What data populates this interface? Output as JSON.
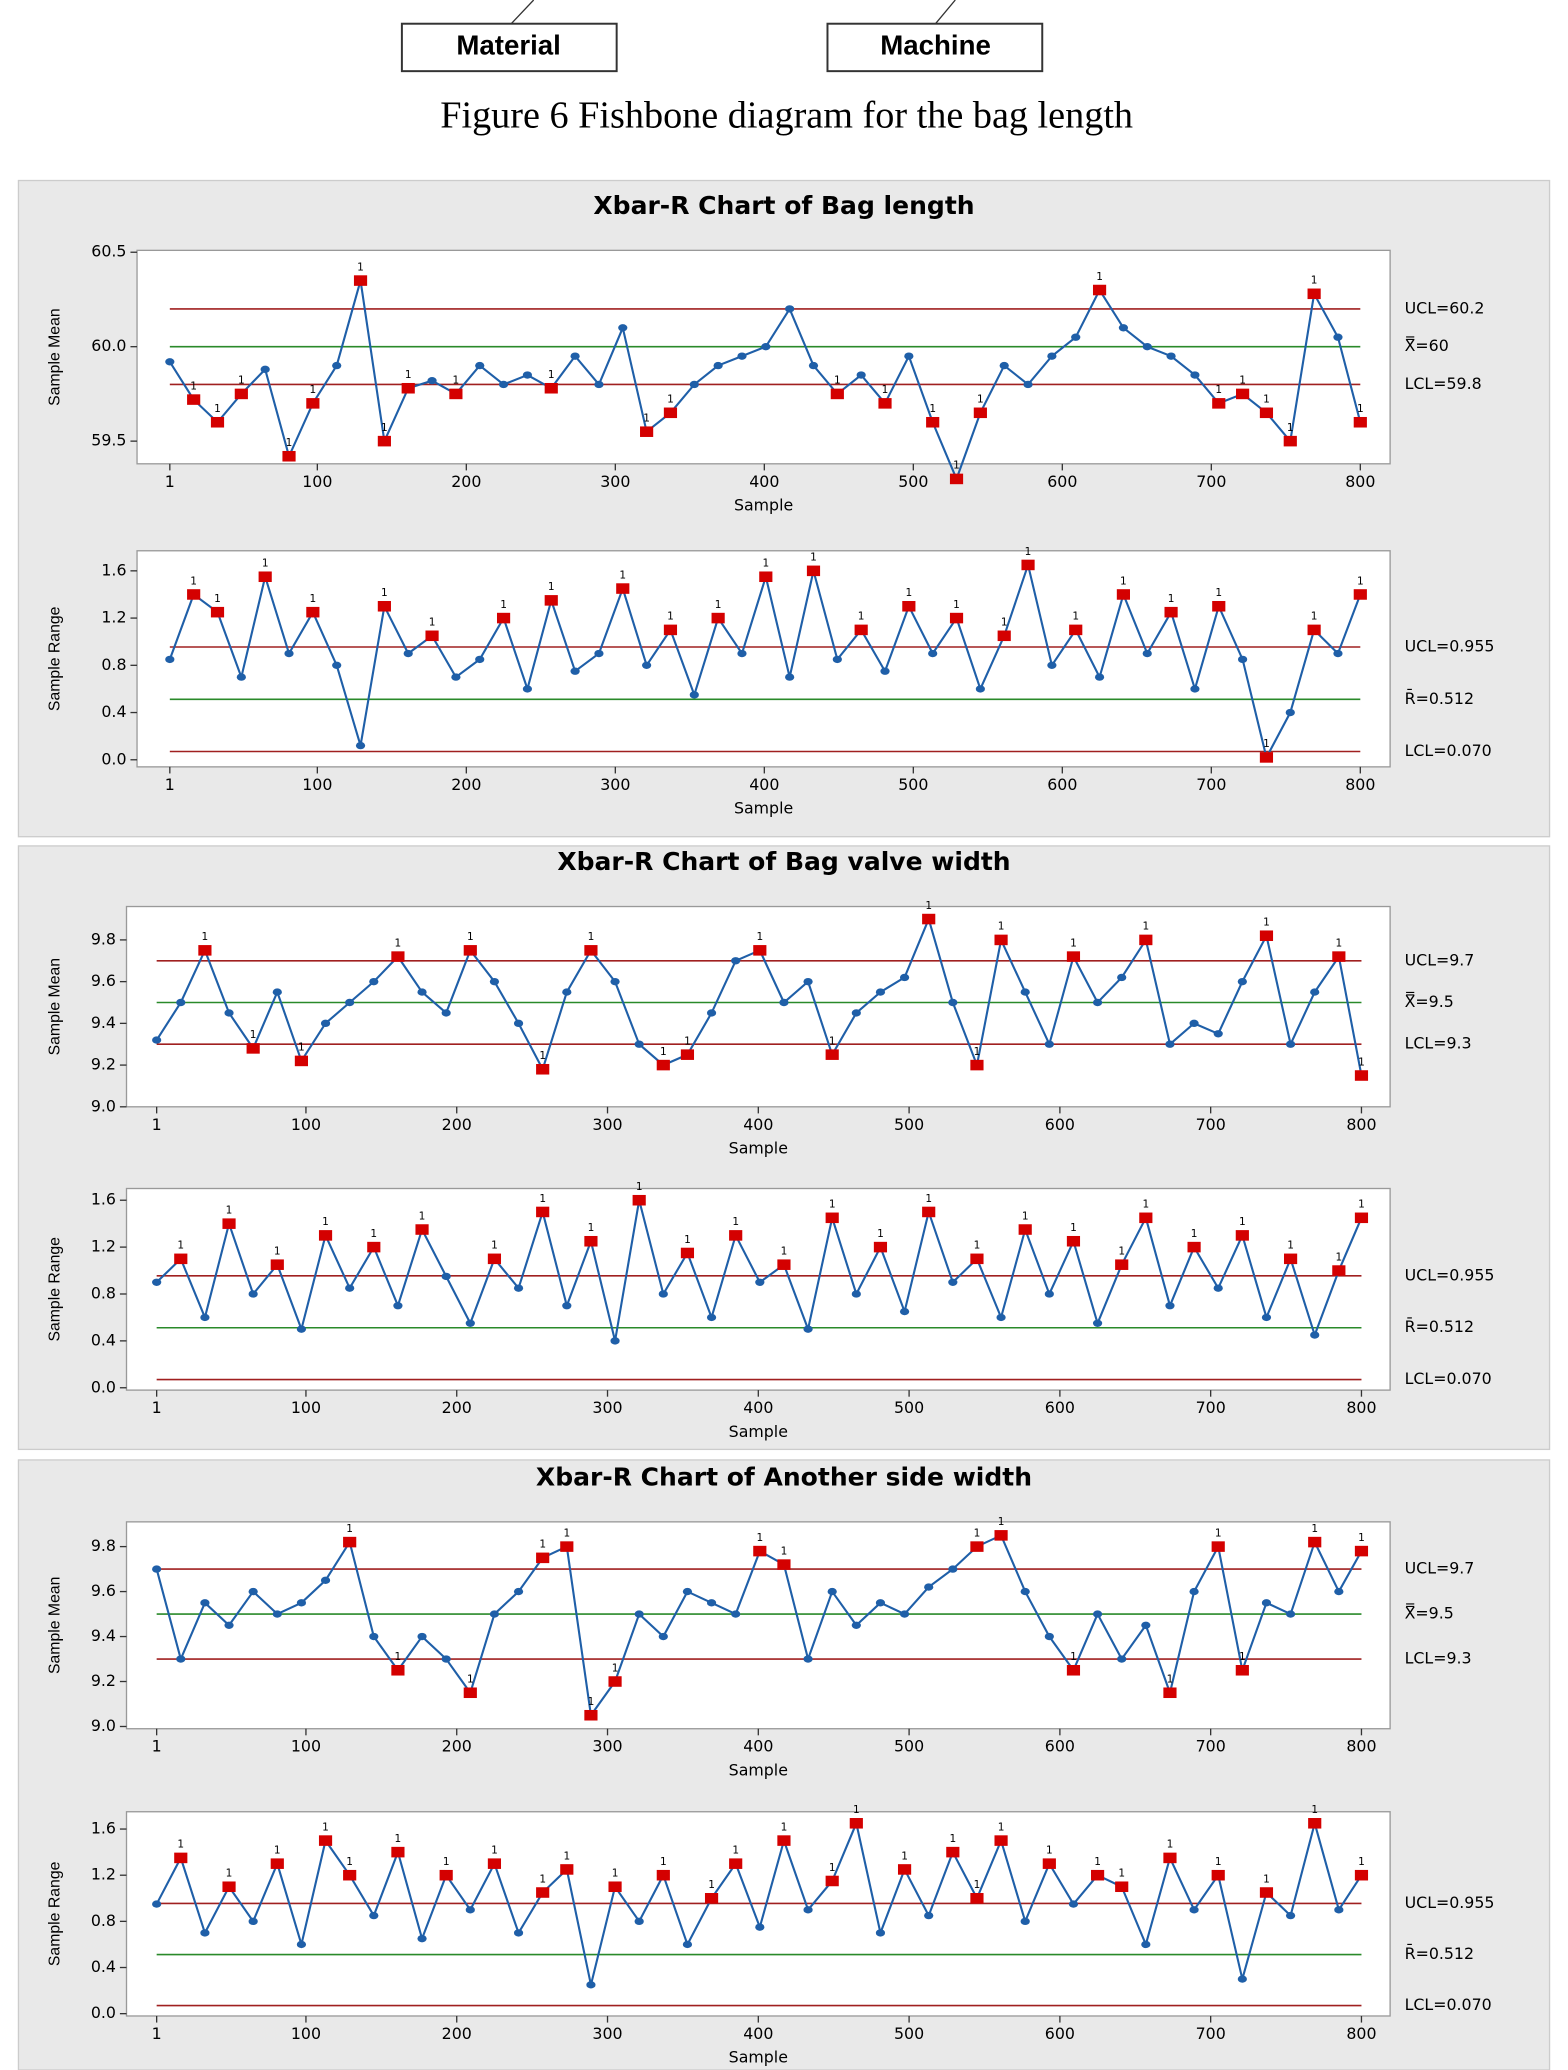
{
  "figure": {
    "boxes": [
      "Material",
      "Machine"
    ],
    "caption": "Figure 6 Fishbone diagram for the bag length"
  },
  "chart_data": [
    {
      "type": "line",
      "title": "Xbar-R Chart of Bag length",
      "ylabel": "Sample Mean",
      "xlabel": "Sample",
      "color": "#1f5fa8",
      "flag_color": "#d40000",
      "flag_label": "1",
      "x": [
        1,
        17,
        33,
        49,
        65,
        81,
        97,
        113,
        129,
        145,
        161,
        177,
        193,
        209,
        225,
        241,
        257,
        273,
        289,
        305,
        321,
        337,
        353,
        369,
        385,
        401,
        417,
        433,
        449,
        465,
        481,
        497,
        513,
        529,
        545,
        561,
        577,
        593,
        609,
        625,
        641,
        657,
        673,
        689,
        705,
        721,
        737,
        753,
        769,
        785,
        800
      ],
      "values": [
        59.92,
        59.72,
        59.6,
        59.75,
        59.88,
        59.42,
        59.7,
        59.9,
        60.35,
        59.5,
        59.78,
        59.82,
        59.75,
        59.9,
        59.8,
        59.85,
        59.78,
        59.95,
        59.8,
        60.1,
        59.55,
        59.65,
        59.8,
        59.9,
        59.95,
        60.0,
        60.2,
        59.9,
        59.75,
        59.85,
        59.7,
        59.95,
        59.6,
        59.3,
        59.65,
        59.9,
        59.8,
        59.95,
        60.05,
        60.3,
        60.1,
        60.0,
        59.95,
        59.85,
        59.7,
        59.75,
        59.65,
        59.5,
        60.28,
        60.05,
        59.6
      ],
      "control_lines": [
        {
          "label": "UCL=60.2",
          "value": 60.2,
          "color": "#a02020"
        },
        {
          "label": "X̿=60",
          "value": 60,
          "color": "#2a8a2a"
        },
        {
          "label": "LCL=59.8",
          "value": 59.8,
          "color": "#a02020"
        }
      ],
      "xlim": [
        -21,
        820
      ],
      "xticks": [
        1,
        100,
        200,
        300,
        400,
        500,
        600,
        700,
        800
      ],
      "ylim": [
        59.38,
        60.51
      ],
      "yticks": [
        59.5,
        {
          "value": 60,
          "label": "60.0"
        },
        60.5
      ]
    },
    {
      "type": "line",
      "ylabel": "Sample Range",
      "xlabel": "Sample",
      "color": "#1f5fa8",
      "flag_color": "#d40000",
      "flag_label": "1",
      "x": [
        1,
        17,
        33,
        49,
        65,
        81,
        97,
        113,
        129,
        145,
        161,
        177,
        193,
        209,
        225,
        241,
        257,
        273,
        289,
        305,
        321,
        337,
        353,
        369,
        385,
        401,
        417,
        433,
        449,
        465,
        481,
        497,
        513,
        529,
        545,
        561,
        577,
        593,
        609,
        625,
        641,
        657,
        673,
        689,
        705,
        721,
        737,
        753,
        769,
        785,
        800
      ],
      "values": [
        0.85,
        1.4,
        1.25,
        0.7,
        1.55,
        0.9,
        1.25,
        0.8,
        0.12,
        1.3,
        0.9,
        1.05,
        0.7,
        0.85,
        1.2,
        0.6,
        1.35,
        0.75,
        0.9,
        1.45,
        0.8,
        1.1,
        0.55,
        1.2,
        0.9,
        1.55,
        0.7,
        1.6,
        0.85,
        1.1,
        0.75,
        1.3,
        0.9,
        1.2,
        0.6,
        1.05,
        1.65,
        0.8,
        1.1,
        0.7,
        1.4,
        0.9,
        1.25,
        0.6,
        1.3,
        0.85,
        0.02,
        0.4,
        1.1,
        0.9,
        1.4
      ],
      "control_lines": [
        {
          "label": "UCL=0.955",
          "value": 0.955,
          "color": "#a02020"
        },
        {
          "label": "R̄=0.512",
          "value": 0.512,
          "color": "#2a8a2a"
        },
        {
          "label": "LCL=0.070",
          "value": 0.07,
          "color": "#a02020"
        }
      ],
      "xlim": [
        -21,
        820
      ],
      "xticks": [
        1,
        100,
        200,
        300,
        400,
        500,
        600,
        700,
        800
      ],
      "ylim": [
        -0.06,
        1.77
      ],
      "yticks": [
        {
          "value": 0,
          "label": "0.0"
        },
        0.4,
        0.8,
        1.2,
        1.6
      ]
    },
    {
      "type": "line",
      "title": "Xbar-R Chart of Bag valve width",
      "ylabel": "Sample Mean",
      "xlabel": "Sample",
      "color": "#1f5fa8",
      "flag_color": "#d40000",
      "flag_label": "1",
      "x": [
        1,
        17,
        33,
        49,
        65,
        81,
        97,
        113,
        129,
        145,
        161,
        177,
        193,
        209,
        225,
        241,
        257,
        273,
        289,
        305,
        321,
        337,
        353,
        369,
        385,
        401,
        417,
        433,
        449,
        465,
        481,
        497,
        513,
        529,
        545,
        561,
        577,
        593,
        609,
        625,
        641,
        657,
        673,
        689,
        705,
        721,
        737,
        753,
        769,
        785,
        800
      ],
      "values": [
        9.32,
        9.5,
        9.75,
        9.45,
        9.28,
        9.55,
        9.22,
        9.4,
        9.5,
        9.6,
        9.72,
        9.55,
        9.45,
        9.75,
        9.6,
        9.4,
        9.18,
        9.55,
        9.75,
        9.6,
        9.3,
        9.2,
        9.25,
        9.45,
        9.7,
        9.75,
        9.5,
        9.6,
        9.25,
        9.45,
        9.55,
        9.62,
        9.9,
        9.5,
        9.2,
        9.8,
        9.55,
        9.3,
        9.72,
        9.5,
        9.62,
        9.8,
        9.3,
        9.4,
        9.35,
        9.6,
        9.82,
        9.3,
        9.55,
        9.72,
        9.15
      ],
      "control_lines": [
        {
          "label": "UCL=9.7",
          "value": 9.7,
          "color": "#a02020"
        },
        {
          "label": "X̿=9.5",
          "value": 9.5,
          "color": "#2a8a2a"
        },
        {
          "label": "LCL=9.3",
          "value": 9.3,
          "color": "#a02020"
        }
      ],
      "xlim": [
        -19,
        819
      ],
      "xticks": [
        1,
        100,
        200,
        300,
        400,
        500,
        600,
        700,
        800
      ],
      "ylim": [
        9.0,
        9.96
      ],
      "yticks": [
        {
          "value": 9,
          "label": "9.0"
        },
        9.2,
        9.4,
        9.6,
        9.8
      ]
    },
    {
      "type": "line",
      "ylabel": "Sample Range",
      "xlabel": "Sample",
      "color": "#1f5fa8",
      "flag_color": "#d40000",
      "flag_label": "1",
      "x": [
        1,
        17,
        33,
        49,
        65,
        81,
        97,
        113,
        129,
        145,
        161,
        177,
        193,
        209,
        225,
        241,
        257,
        273,
        289,
        305,
        321,
        337,
        353,
        369,
        385,
        401,
        417,
        433,
        449,
        465,
        481,
        497,
        513,
        529,
        545,
        561,
        577,
        593,
        609,
        625,
        641,
        657,
        673,
        689,
        705,
        721,
        737,
        753,
        769,
        785,
        800
      ],
      "values": [
        0.9,
        1.1,
        0.6,
        1.4,
        0.8,
        1.05,
        0.5,
        1.3,
        0.85,
        1.2,
        0.7,
        1.35,
        0.95,
        0.55,
        1.1,
        0.85,
        1.5,
        0.7,
        1.25,
        0.4,
        1.6,
        0.8,
        1.15,
        0.6,
        1.3,
        0.9,
        1.05,
        0.5,
        1.45,
        0.8,
        1.2,
        0.65,
        1.5,
        0.9,
        1.1,
        0.6,
        1.35,
        0.8,
        1.25,
        0.55,
        1.05,
        1.45,
        0.7,
        1.2,
        0.85,
        1.3,
        0.6,
        1.1,
        0.45,
        1.0,
        1.45
      ],
      "control_lines": [
        {
          "label": "UCL=0.955",
          "value": 0.955,
          "color": "#a02020"
        },
        {
          "label": "R̄=0.512",
          "value": 0.512,
          "color": "#2a8a2a"
        },
        {
          "label": "LCL=0.070",
          "value": 0.07,
          "color": "#a02020"
        }
      ],
      "xlim": [
        -19,
        819
      ],
      "xticks": [
        1,
        100,
        200,
        300,
        400,
        500,
        600,
        700,
        800
      ],
      "ylim": [
        -0.02,
        1.7
      ],
      "yticks": [
        {
          "value": 0,
          "label": "0.0"
        },
        0.4,
        0.8,
        1.2,
        1.6
      ]
    },
    {
      "type": "line",
      "title": "Xbar-R Chart of Another side width",
      "ylabel": "Sample Mean",
      "xlabel": "Sample",
      "color": "#1f5fa8",
      "flag_color": "#d40000",
      "flag_label": "1",
      "x": [
        1,
        17,
        33,
        49,
        65,
        81,
        97,
        113,
        129,
        145,
        161,
        177,
        193,
        209,
        225,
        241,
        257,
        273,
        289,
        305,
        321,
        337,
        353,
        369,
        385,
        401,
        417,
        433,
        449,
        465,
        481,
        497,
        513,
        529,
        545,
        561,
        577,
        593,
        609,
        625,
        641,
        657,
        673,
        689,
        705,
        721,
        737,
        753,
        769,
        785,
        800
      ],
      "values": [
        9.7,
        9.3,
        9.55,
        9.45,
        9.6,
        9.5,
        9.55,
        9.65,
        9.82,
        9.4,
        9.25,
        9.4,
        9.3,
        9.15,
        9.5,
        9.6,
        9.75,
        9.8,
        9.05,
        9.2,
        9.5,
        9.4,
        9.6,
        9.55,
        9.5,
        9.78,
        9.72,
        9.3,
        9.6,
        9.45,
        9.55,
        9.5,
        9.62,
        9.7,
        9.8,
        9.85,
        9.6,
        9.4,
        9.25,
        9.5,
        9.3,
        9.45,
        9.15,
        9.6,
        9.8,
        9.25,
        9.55,
        9.5,
        9.82,
        9.6,
        9.78
      ],
      "control_lines": [
        {
          "label": "UCL=9.7",
          "value": 9.7,
          "color": "#a02020"
        },
        {
          "label": "X̿=9.5",
          "value": 9.5,
          "color": "#2a8a2a"
        },
        {
          "label": "LCL=9.3",
          "value": 9.3,
          "color": "#a02020"
        }
      ],
      "xlim": [
        -19,
        819
      ],
      "xticks": [
        1,
        100,
        200,
        300,
        400,
        500,
        600,
        700,
        800
      ],
      "ylim": [
        8.99,
        9.91
      ],
      "yticks": [
        {
          "value": 9,
          "label": "9.0"
        },
        9.2,
        9.4,
        9.6,
        9.8
      ]
    },
    {
      "type": "line",
      "ylabel": "Sample Range",
      "xlabel": "Sample",
      "color": "#1f5fa8",
      "flag_color": "#d40000",
      "flag_label": "1",
      "x": [
        1,
        17,
        33,
        49,
        65,
        81,
        97,
        113,
        129,
        145,
        161,
        177,
        193,
        209,
        225,
        241,
        257,
        273,
        289,
        305,
        321,
        337,
        353,
        369,
        385,
        401,
        417,
        433,
        449,
        465,
        481,
        497,
        513,
        529,
        545,
        561,
        577,
        593,
        609,
        625,
        641,
        657,
        673,
        689,
        705,
        721,
        737,
        753,
        769,
        785,
        800
      ],
      "values": [
        0.95,
        1.35,
        0.7,
        1.1,
        0.8,
        1.3,
        0.6,
        1.5,
        1.2,
        0.85,
        1.4,
        0.65,
        1.2,
        0.9,
        1.3,
        0.7,
        1.05,
        1.25,
        0.25,
        1.1,
        0.8,
        1.2,
        0.6,
        1.0,
        1.3,
        0.75,
        1.5,
        0.9,
        1.15,
        1.65,
        0.7,
        1.25,
        0.85,
        1.4,
        1.0,
        1.5,
        0.8,
        1.3,
        0.95,
        1.2,
        1.1,
        0.6,
        1.35,
        0.9,
        1.2,
        0.3,
        1.05,
        0.85,
        1.65,
        0.9,
        1.2
      ],
      "control_lines": [
        {
          "label": "UCL=0.955",
          "value": 0.955,
          "color": "#a02020"
        },
        {
          "label": "R̄=0.512",
          "value": 0.512,
          "color": "#2a8a2a"
        },
        {
          "label": "LCL=0.070",
          "value": 0.07,
          "color": "#a02020"
        }
      ],
      "xlim": [
        -19,
        819
      ],
      "xticks": [
        1,
        100,
        200,
        300,
        400,
        500,
        600,
        700,
        800
      ],
      "ylim": [
        -0.02,
        1.75
      ],
      "yticks": [
        {
          "value": 0,
          "label": "0.0"
        },
        0.4,
        0.8,
        1.2,
        1.6
      ]
    }
  ]
}
